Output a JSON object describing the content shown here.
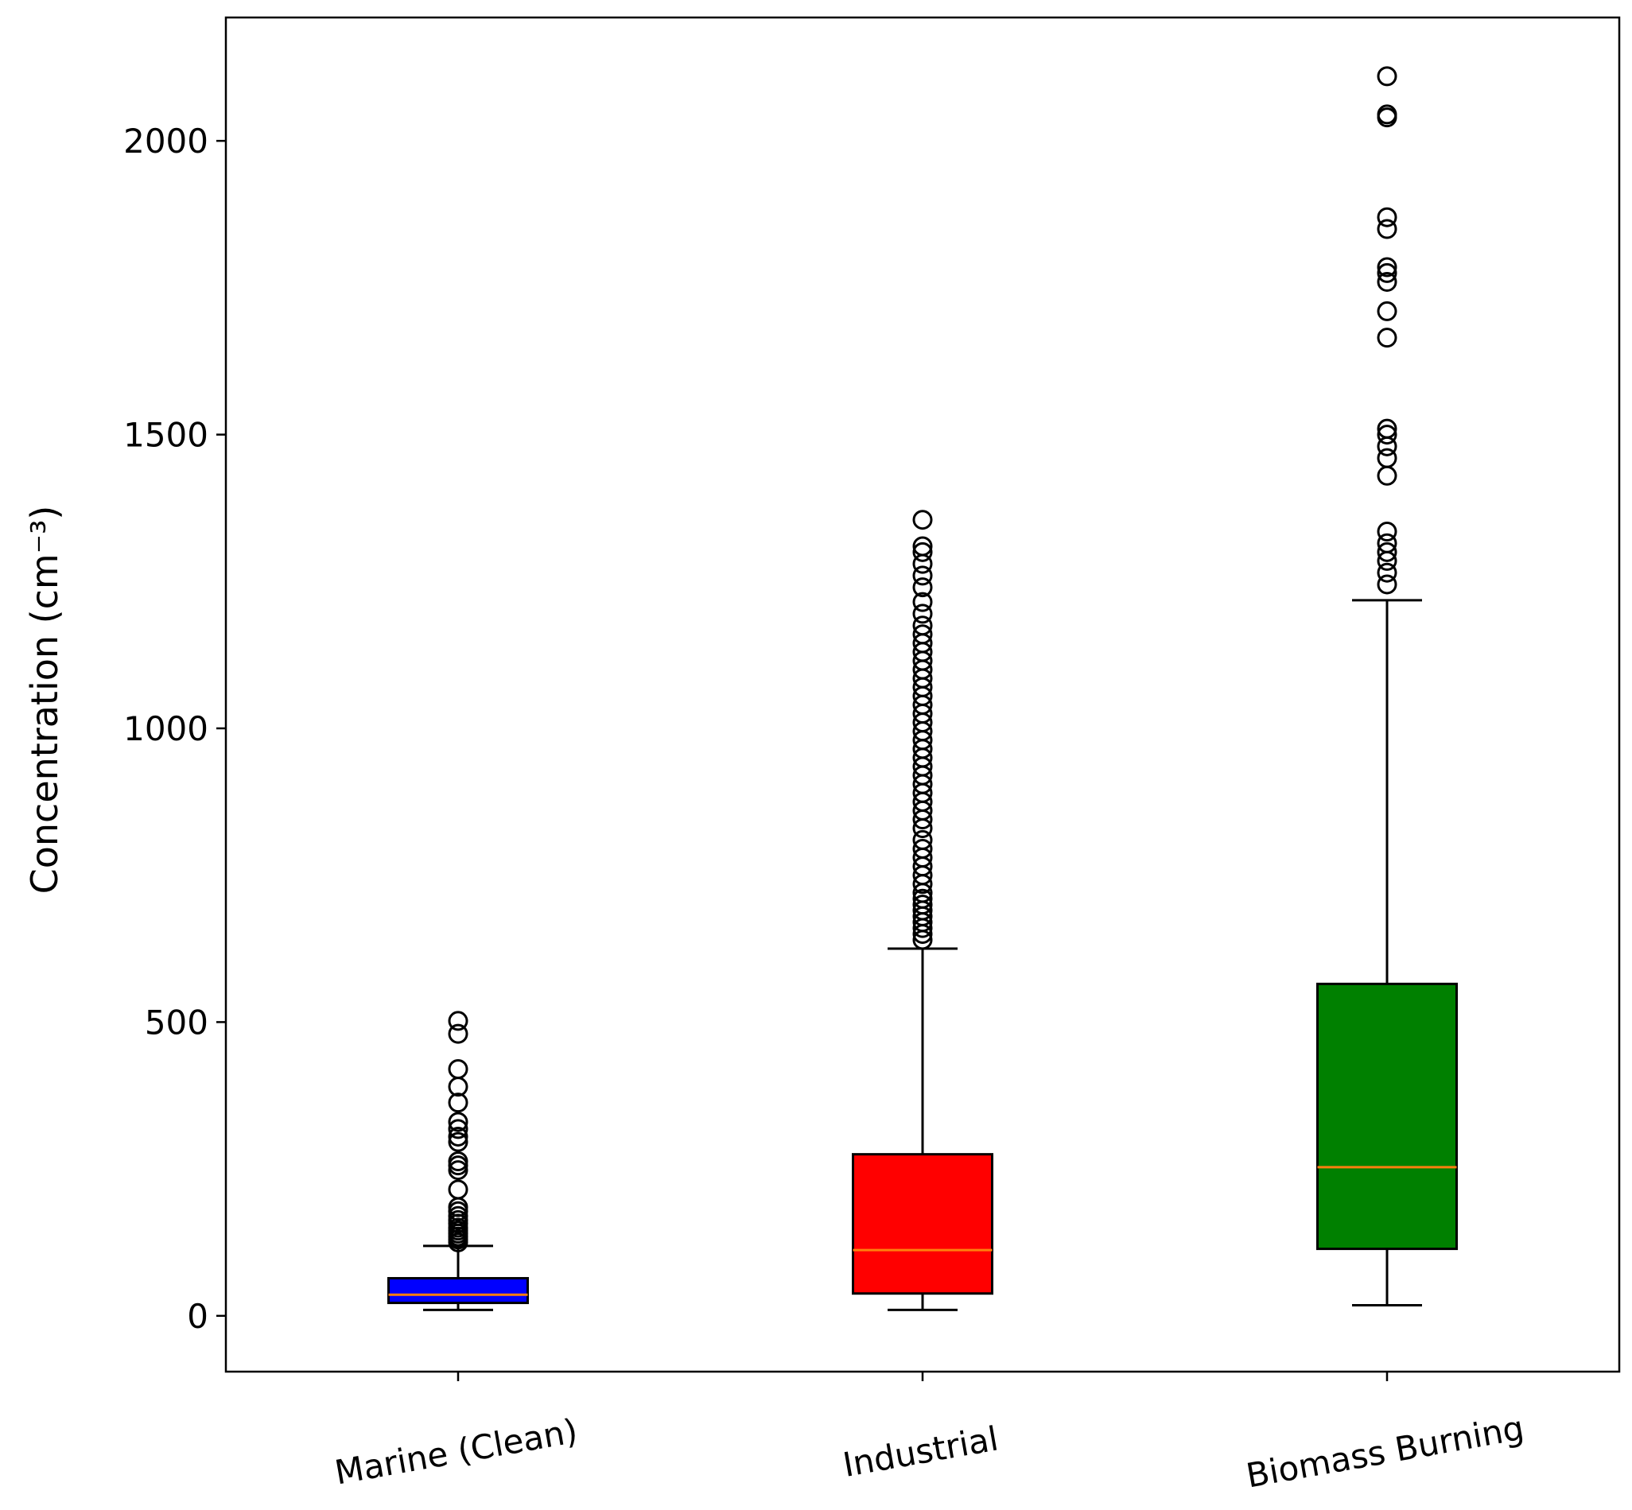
{
  "chart_data": {
    "type": "box",
    "title": "",
    "xlabel": "",
    "ylabel": "Concentration (cm⁻³)",
    "ylim": [
      -95,
      2210
    ],
    "yticks": [
      0,
      500,
      1000,
      1500,
      2000
    ],
    "grid": false,
    "categories": [
      "Marine (Clean)",
      "Industrial",
      "Biomass Burning"
    ],
    "boxes": [
      {
        "category": "Marine (Clean)",
        "color": "#0000ff",
        "whisker_low": 10,
        "q1": 22,
        "median": 36,
        "q3": 64,
        "whisker_high": 119,
        "outliers": [
          125,
          130,
          135,
          140,
          145,
          150,
          157,
          163,
          170,
          178,
          185,
          215,
          248,
          256,
          263,
          296,
          305,
          318,
          330,
          363,
          390,
          420,
          480,
          502
        ]
      },
      {
        "category": "Industrial",
        "color": "#ff0000",
        "whisker_low": 10,
        "q1": 38,
        "median": 112,
        "q3": 275,
        "whisker_high": 625,
        "outliers": [
          640,
          650,
          660,
          670,
          680,
          690,
          700,
          710,
          720,
          735,
          750,
          765,
          780,
          795,
          810,
          830,
          845,
          860,
          875,
          890,
          905,
          920,
          935,
          950,
          965,
          980,
          995,
          1010,
          1025,
          1040,
          1055,
          1070,
          1085,
          1100,
          1115,
          1130,
          1145,
          1160,
          1175,
          1195,
          1215,
          1240,
          1260,
          1280,
          1300,
          1310,
          1355
        ]
      },
      {
        "category": "Biomass Burning",
        "color": "#008000",
        "whisker_low": 18,
        "q1": 114,
        "median": 253,
        "q3": 565,
        "whisker_high": 1218,
        "outliers": [
          1245,
          1265,
          1285,
          1300,
          1315,
          1335,
          1430,
          1460,
          1480,
          1500,
          1510,
          1665,
          1710,
          1760,
          1775,
          1785,
          1850,
          1870,
          2040,
          2045,
          2110
        ]
      }
    ]
  }
}
